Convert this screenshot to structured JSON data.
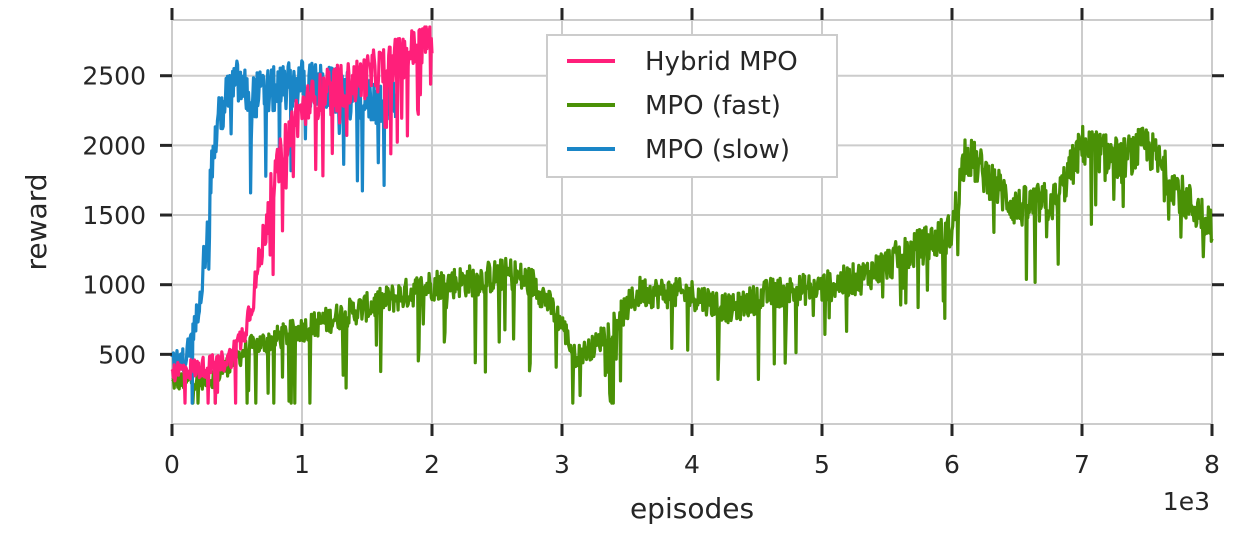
{
  "chart_data": {
    "type": "line",
    "title": "",
    "xlabel": "episodes",
    "ylabel": "reward",
    "x_offset_text": "1e3",
    "xlim": [
      0,
      8
    ],
    "ylim": [
      0,
      2900
    ],
    "x_ticks": [
      "0",
      "1",
      "2",
      "3",
      "4",
      "5",
      "6",
      "7",
      "8"
    ],
    "y_ticks": [
      "500",
      "1000",
      "1500",
      "2000",
      "2500"
    ],
    "grid": true,
    "legend_position": "top-center",
    "series": [
      {
        "name": "Hybrid MPO",
        "color": "#ff1f7a",
        "noise": 160,
        "x": [
          0,
          0.2,
          0.35,
          0.45,
          0.55,
          0.62,
          0.68,
          0.75,
          0.85,
          0.95,
          1.05,
          1.2,
          1.4,
          1.6,
          1.8,
          1.95,
          2.0
        ],
        "y": [
          380,
          400,
          430,
          480,
          650,
          900,
          1200,
          1600,
          1950,
          2200,
          2300,
          2400,
          2450,
          2550,
          2650,
          2750,
          2780
        ]
      },
      {
        "name": "MPO (fast)",
        "color": "#4a9106",
        "noise": 150,
        "x": [
          0,
          0.3,
          0.6,
          1.0,
          1.3,
          1.6,
          2.0,
          2.3,
          2.6,
          2.8,
          3.0,
          3.1,
          3.25,
          3.45,
          3.6,
          4.0,
          4.3,
          4.6,
          5.0,
          5.3,
          5.6,
          6.0,
          6.1,
          6.5,
          6.8,
          7.0,
          7.3,
          7.5,
          7.8,
          8.0
        ],
        "y": [
          300,
          320,
          550,
          680,
          780,
          870,
          1000,
          1030,
          1080,
          1000,
          720,
          480,
          560,
          780,
          950,
          930,
          820,
          940,
          980,
          1050,
          1200,
          1380,
          1950,
          1550,
          1600,
          2000,
          1900,
          2000,
          1600,
          1450
        ]
      },
      {
        "name": "MPO (slow)",
        "color": "#1a86c7",
        "noise": 170,
        "x": [
          0,
          0.1,
          0.18,
          0.25,
          0.3,
          0.35,
          0.42,
          0.5,
          0.6,
          0.8,
          1.0,
          1.2,
          1.4,
          1.6,
          1.72
        ],
        "y": [
          430,
          470,
          700,
          1200,
          1800,
          2150,
          2350,
          2450,
          2350,
          2400,
          2450,
          2400,
          2350,
          2300,
          2350
        ]
      }
    ]
  }
}
